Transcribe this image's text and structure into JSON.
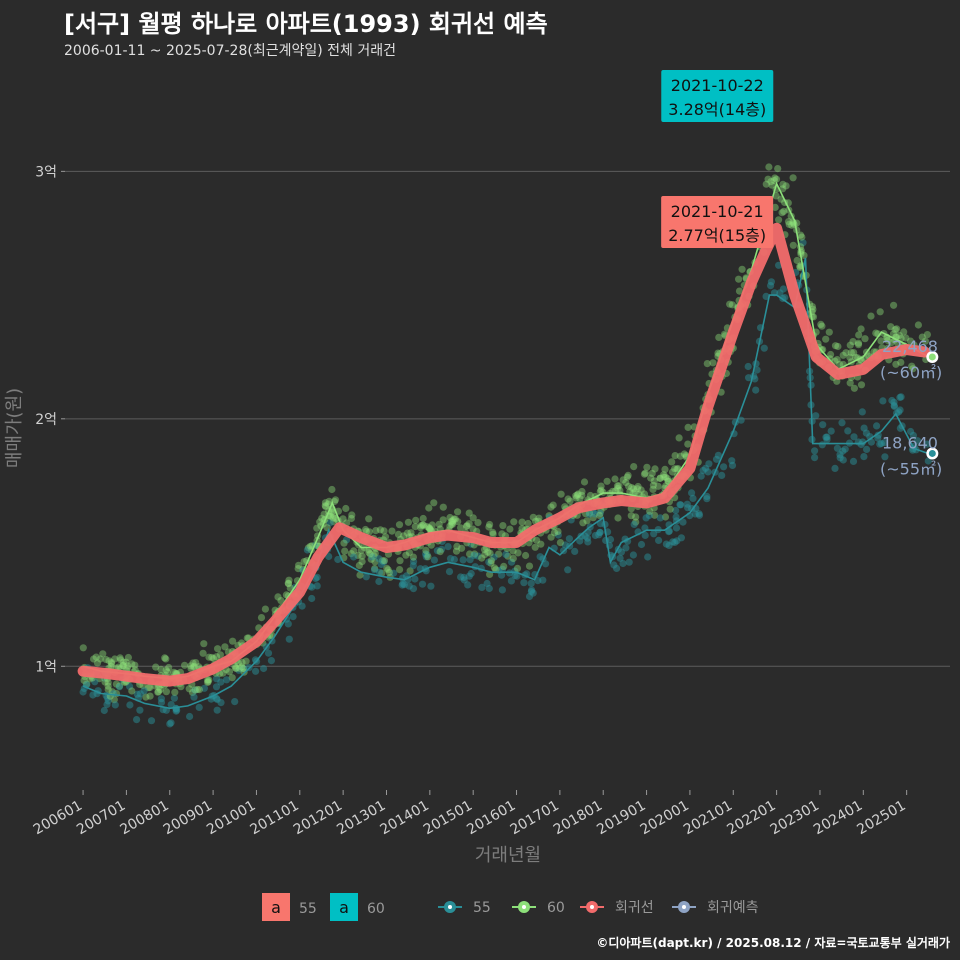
{
  "header": {
    "title": "[서구] 월평 하나로 아파트(1993) 회귀선 예측",
    "subtitle": "2006-01-11 ~ 2025-07-28(최근계약일) 전체 거래건"
  },
  "caption": "©디아파트(dapt.kr) / 2025.08.12 / 자료=국토교통부 실거래가",
  "colors": {
    "background": "#2b2b2b",
    "grid": "#5c5c5c",
    "series_55": "#2a8f98",
    "series_60": "#8de07a",
    "regression": "#f26b6b",
    "forecast": "#8ea3c4",
    "label_55": "#f8766d",
    "label_60": "#00bfc4"
  },
  "chart_data": {
    "type": "scatter",
    "xlabel": "거래년월",
    "ylabel": "매매가(원)",
    "x_range": [
      "2005-08",
      "2026-01"
    ],
    "ylim": [
      0.5,
      3.45
    ],
    "y_ticks": [
      {
        "value": 1,
        "label": "1억"
      },
      {
        "value": 2,
        "label": "2억"
      },
      {
        "value": 3,
        "label": "3억"
      }
    ],
    "x_ticks": [
      "200601",
      "200701",
      "200801",
      "200901",
      "201001",
      "201101",
      "201201",
      "201301",
      "201401",
      "201501",
      "201601",
      "201701",
      "201801",
      "201901",
      "202001",
      "202101",
      "202201",
      "202301",
      "202401",
      "202501"
    ],
    "grid": "horizontal",
    "series": [
      {
        "name": "55",
        "kind": "line",
        "color": "#2a8f98",
        "points": [
          [
            "2006-01",
            0.92
          ],
          [
            "2006-06",
            0.89
          ],
          [
            "2007-01",
            0.88
          ],
          [
            "2007-06",
            0.85
          ],
          [
            "2008-01",
            0.83
          ],
          [
            "2008-06",
            0.84
          ],
          [
            "2009-01",
            0.88
          ],
          [
            "2009-06",
            0.92
          ],
          [
            "2010-01",
            1.02
          ],
          [
            "2010-06",
            1.12
          ],
          [
            "2011-01",
            1.28
          ],
          [
            "2011-06",
            1.42
          ],
          [
            "2011-09",
            1.55
          ],
          [
            "2012-01",
            1.42
          ],
          [
            "2012-06",
            1.38
          ],
          [
            "2013-01",
            1.36
          ],
          [
            "2013-06",
            1.35
          ],
          [
            "2014-01",
            1.4
          ],
          [
            "2014-06",
            1.42
          ],
          [
            "2015-01",
            1.4
          ],
          [
            "2015-06",
            1.38
          ],
          [
            "2016-01",
            1.38
          ],
          [
            "2016-06",
            1.35
          ],
          [
            "2016-10",
            1.48
          ],
          [
            "2017-01",
            1.45
          ],
          [
            "2017-06",
            1.52
          ],
          [
            "2017-09",
            1.56
          ],
          [
            "2018-01",
            1.6
          ],
          [
            "2018-03",
            1.42
          ],
          [
            "2018-06",
            1.5
          ],
          [
            "2019-01",
            1.55
          ],
          [
            "2019-06",
            1.55
          ],
          [
            "2020-01",
            1.62
          ],
          [
            "2020-06",
            1.72
          ],
          [
            "2021-01",
            1.95
          ],
          [
            "2021-06",
            2.15
          ],
          [
            "2021-11",
            2.5
          ],
          [
            "2022-01",
            2.5
          ],
          [
            "2022-06",
            2.45
          ],
          [
            "2022-09",
            2.65
          ],
          [
            "2022-11",
            1.9
          ],
          [
            "2023-06",
            1.9
          ],
          [
            "2024-01",
            1.9
          ],
          [
            "2024-06",
            1.95
          ],
          [
            "2024-10",
            2.02
          ],
          [
            "2025-03",
            1.88
          ],
          [
            "2025-07",
            1.86
          ]
        ]
      },
      {
        "name": "60",
        "kind": "line",
        "color": "#8de07a",
        "points": [
          [
            "2006-01",
            1.0
          ],
          [
            "2006-06",
            0.98
          ],
          [
            "2007-01",
            0.97
          ],
          [
            "2007-06",
            0.96
          ],
          [
            "2008-01",
            0.95
          ],
          [
            "2008-06",
            0.96
          ],
          [
            "2009-01",
            1.0
          ],
          [
            "2009-06",
            1.02
          ],
          [
            "2010-01",
            1.1
          ],
          [
            "2010-06",
            1.2
          ],
          [
            "2011-01",
            1.35
          ],
          [
            "2011-06",
            1.52
          ],
          [
            "2011-10",
            1.66
          ],
          [
            "2012-01",
            1.55
          ],
          [
            "2012-06",
            1.48
          ],
          [
            "2013-01",
            1.48
          ],
          [
            "2013-06",
            1.5
          ],
          [
            "2014-01",
            1.54
          ],
          [
            "2014-06",
            1.55
          ],
          [
            "2015-01",
            1.52
          ],
          [
            "2015-06",
            1.5
          ],
          [
            "2016-01",
            1.5
          ],
          [
            "2016-06",
            1.55
          ],
          [
            "2017-01",
            1.6
          ],
          [
            "2017-06",
            1.65
          ],
          [
            "2018-01",
            1.7
          ],
          [
            "2018-06",
            1.7
          ],
          [
            "2019-01",
            1.68
          ],
          [
            "2019-06",
            1.7
          ],
          [
            "2020-01",
            1.85
          ],
          [
            "2020-06",
            2.1
          ],
          [
            "2021-01",
            2.4
          ],
          [
            "2021-06",
            2.6
          ],
          [
            "2021-10",
            2.8
          ],
          [
            "2022-01",
            2.95
          ],
          [
            "2022-06",
            2.8
          ],
          [
            "2022-12",
            2.3
          ],
          [
            "2023-06",
            2.2
          ],
          [
            "2024-01",
            2.25
          ],
          [
            "2024-06",
            2.35
          ],
          [
            "2025-01",
            2.3
          ],
          [
            "2025-07",
            2.25
          ]
        ]
      },
      {
        "name": "회귀선",
        "kind": "regression",
        "color": "#f26b6b",
        "points": [
          [
            "2006-01",
            0.98
          ],
          [
            "2006-08",
            0.97
          ],
          [
            "2007-06",
            0.95
          ],
          [
            "2008-01",
            0.94
          ],
          [
            "2008-06",
            0.95
          ],
          [
            "2009-01",
            0.99
          ],
          [
            "2009-06",
            1.03
          ],
          [
            "2010-01",
            1.1
          ],
          [
            "2010-06",
            1.18
          ],
          [
            "2011-01",
            1.3
          ],
          [
            "2011-06",
            1.44
          ],
          [
            "2011-12",
            1.56
          ],
          [
            "2012-06",
            1.52
          ],
          [
            "2013-01",
            1.48
          ],
          [
            "2013-06",
            1.49
          ],
          [
            "2014-01",
            1.52
          ],
          [
            "2014-06",
            1.53
          ],
          [
            "2015-01",
            1.52
          ],
          [
            "2015-06",
            1.5
          ],
          [
            "2016-01",
            1.5
          ],
          [
            "2016-06",
            1.55
          ],
          [
            "2017-01",
            1.6
          ],
          [
            "2017-06",
            1.64
          ],
          [
            "2018-01",
            1.66
          ],
          [
            "2018-06",
            1.67
          ],
          [
            "2019-01",
            1.66
          ],
          [
            "2019-06",
            1.68
          ],
          [
            "2020-01",
            1.8
          ],
          [
            "2020-06",
            2.05
          ],
          [
            "2021-01",
            2.35
          ],
          [
            "2021-06",
            2.55
          ],
          [
            "2021-10",
            2.68
          ],
          [
            "2022-01",
            2.77
          ],
          [
            "2022-06",
            2.5
          ],
          [
            "2022-12",
            2.25
          ],
          [
            "2023-06",
            2.18
          ],
          [
            "2024-01",
            2.2
          ],
          [
            "2024-06",
            2.26
          ],
          [
            "2025-01",
            2.28
          ],
          [
            "2025-06",
            2.27
          ]
        ]
      },
      {
        "name": "회귀예측",
        "kind": "forecast",
        "color": "#8ea3c4",
        "points": []
      }
    ],
    "legend": {
      "position": "bottom",
      "label_keys": [
        {
          "letter": "a",
          "text": "55",
          "color": "#f8766d"
        },
        {
          "letter": "a",
          "text": "60",
          "color": "#00bfc4"
        }
      ],
      "line_keys": [
        {
          "text": "55",
          "color": "#2a8f98"
        },
        {
          "text": "60",
          "color": "#8de07a"
        },
        {
          "text": "회귀선",
          "color": "#f26b6b"
        },
        {
          "text": "회귀예측",
          "color": "#8ea3c4"
        }
      ]
    },
    "annotations": [
      {
        "date": "2021-10-22",
        "value_label": "3.28억(14층)",
        "series": "60",
        "color": "#00bfc4",
        "value": 3.28
      },
      {
        "date": "2021-10-21",
        "value_label": "2.77억(15층)",
        "series": "55",
        "color": "#f8766d",
        "value": 2.77
      }
    ],
    "end_labels": [
      {
        "value": "22,468",
        "area": "(~60㎡)",
        "series": "60",
        "y": 2.25
      },
      {
        "value": "18,640",
        "area": "(~55㎡)",
        "series": "55",
        "y": 1.86
      }
    ]
  }
}
